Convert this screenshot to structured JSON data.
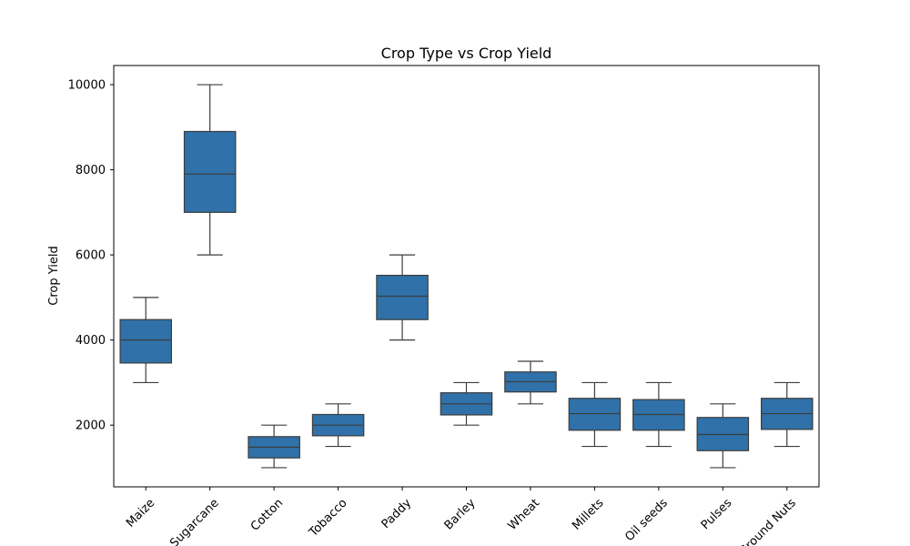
{
  "chart_data": {
    "type": "box",
    "title": "Crop Type vs Crop Yield",
    "xlabel": "",
    "ylabel": "Crop Yield",
    "ylim": [
      550,
      10450
    ],
    "yticks": [
      2000,
      4000,
      6000,
      8000,
      10000
    ],
    "grid": false,
    "color": "#2f71a8",
    "categories": [
      "Maize",
      "Sugarcane",
      "Cotton",
      "Tobacco",
      "Paddy",
      "Barley",
      "Wheat",
      "Millets",
      "Oil seeds",
      "Pulses",
      "Ground Nuts"
    ],
    "boxes": [
      {
        "category": "Maize",
        "min": 3000,
        "q1": 3460,
        "median": 4000,
        "q3": 4480,
        "max": 5000
      },
      {
        "category": "Sugarcane",
        "min": 6000,
        "q1": 7000,
        "median": 7900,
        "q3": 8900,
        "max": 10000
      },
      {
        "category": "Cotton",
        "min": 1000,
        "q1": 1230,
        "median": 1480,
        "q3": 1730,
        "max": 2000
      },
      {
        "category": "Tobacco",
        "min": 1500,
        "q1": 1750,
        "median": 2000,
        "q3": 2250,
        "max": 2500
      },
      {
        "category": "Paddy",
        "min": 4000,
        "q1": 4480,
        "median": 5030,
        "q3": 5520,
        "max": 6000
      },
      {
        "category": "Barley",
        "min": 2000,
        "q1": 2240,
        "median": 2500,
        "q3": 2760,
        "max": 3000
      },
      {
        "category": "Wheat",
        "min": 2500,
        "q1": 2780,
        "median": 3020,
        "q3": 3250,
        "max": 3500
      },
      {
        "category": "Millets",
        "min": 1500,
        "q1": 1880,
        "median": 2270,
        "q3": 2630,
        "max": 3000
      },
      {
        "category": "Oil seeds",
        "min": 1500,
        "q1": 1880,
        "median": 2250,
        "q3": 2600,
        "max": 3000
      },
      {
        "category": "Pulses",
        "min": 1000,
        "q1": 1400,
        "median": 1780,
        "q3": 2180,
        "max": 2500
      },
      {
        "category": "Ground Nuts",
        "min": 1500,
        "q1": 1900,
        "median": 2270,
        "q3": 2630,
        "max": 3000
      }
    ]
  }
}
